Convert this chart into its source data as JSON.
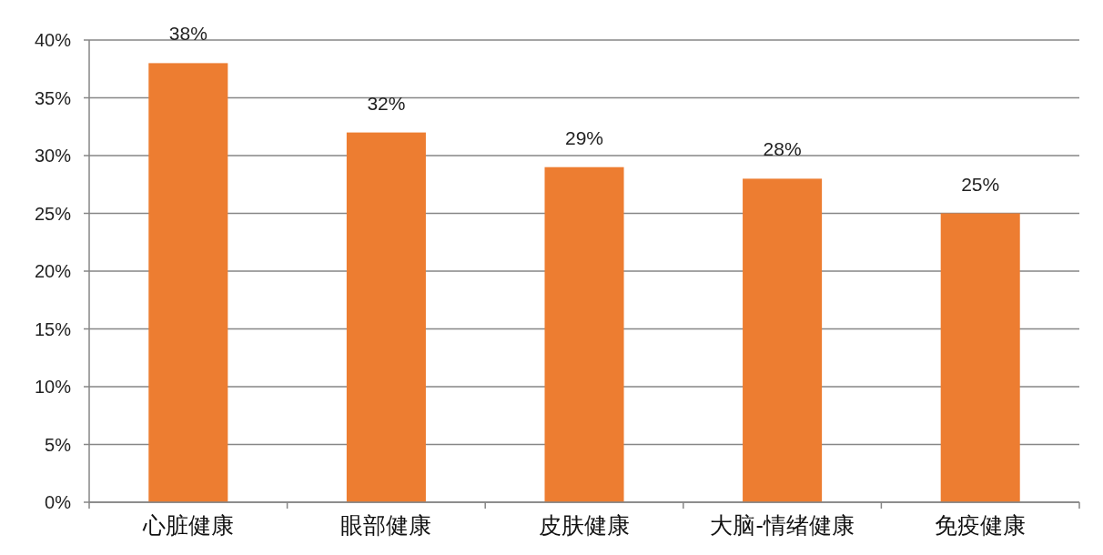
{
  "chart_data": {
    "type": "bar",
    "categories": [
      "心脏健康",
      "眼部健康",
      "皮肤健康",
      "大脑-情绪健康",
      "免疫健康"
    ],
    "values": [
      38,
      32,
      29,
      28,
      25
    ],
    "value_labels": [
      "38%",
      "32%",
      "29%",
      "28%",
      "25%"
    ],
    "color": "#ed7d31",
    "ylim": [
      0,
      40
    ],
    "yticks": [
      {
        "value": 0,
        "label": "0%"
      },
      {
        "value": 5,
        "label": "5%"
      },
      {
        "value": 10,
        "label": "10%"
      },
      {
        "value": 15,
        "label": "15%"
      },
      {
        "value": 20,
        "label": "20%"
      },
      {
        "value": 25,
        "label": "25%"
      },
      {
        "value": 30,
        "label": "30%"
      },
      {
        "value": 35,
        "label": "35%"
      },
      {
        "value": 40,
        "label": "40%"
      }
    ],
    "grid": "y"
  }
}
